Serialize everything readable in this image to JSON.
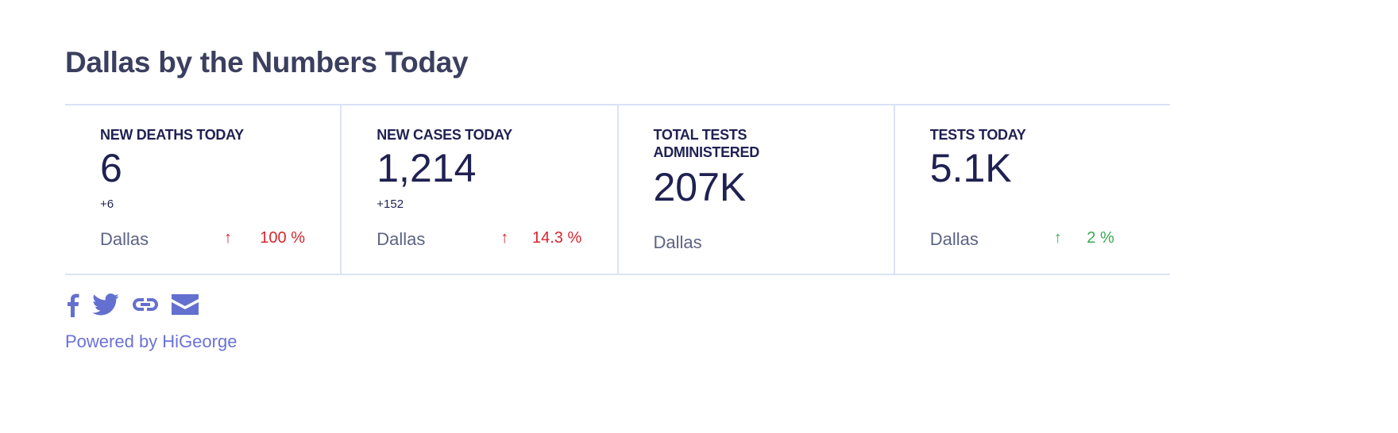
{
  "title": "Dallas by the Numbers Today",
  "cards": [
    {
      "label": "NEW DEATHS TODAY",
      "value": "6",
      "delta": "+6",
      "location": "Dallas",
      "arrow": "↑",
      "change": "100 %",
      "trend": "up-bad"
    },
    {
      "label": "NEW CASES TODAY",
      "value": "1,214",
      "delta": "+152",
      "location": "Dallas",
      "arrow": "↑",
      "change": "14.3 %",
      "trend": "up-bad"
    },
    {
      "label": "TOTAL TESTS ADMINISTERED",
      "value": "207K",
      "location": "Dallas"
    },
    {
      "label": "TESTS TODAY",
      "value": "5.1K",
      "location": "Dallas",
      "arrow": "↑",
      "change": "2 %",
      "trend": "up-good"
    }
  ],
  "share_icons": [
    "facebook-icon",
    "twitter-icon",
    "link-icon",
    "email-icon"
  ],
  "powered_by": "Powered by HiGeorge",
  "colors": {
    "negative": "#d7262f",
    "positive": "#3aa853",
    "accent": "#6470cf"
  }
}
